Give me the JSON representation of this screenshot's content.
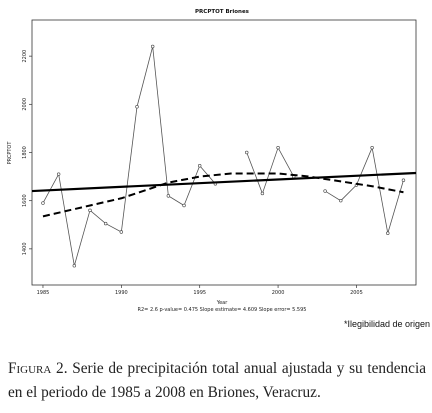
{
  "chart_data": {
    "type": "line",
    "title": "PRCPTOT  Briones",
    "xlabel": "Year",
    "ylabel": "PRCPTOT",
    "xlim": [
      1984.3,
      2008.8
    ],
    "ylim": [
      1250,
      2350
    ],
    "x_ticks": [
      1985,
      1990,
      1995,
      2000,
      2005
    ],
    "y_ticks": [
      1400,
      1600,
      1800,
      2000,
      2200
    ],
    "footnote": "R2= 2.6   p-value= 0.475   Slope estimate= 4.609   Slope error= 5.595",
    "series": [
      {
        "style": "observed",
        "segments": [
          {
            "x": [
              1985,
              1986,
              1987,
              1988,
              1989,
              1990,
              1991,
              1992,
              1993,
              1994,
              1995,
              1996
            ],
            "y": [
              1590,
              1710,
              1330,
              1560,
              1505,
              1470,
              1990,
              2240,
              1620,
              1580,
              1745,
              1670
            ]
          },
          {
            "x": [
              1998,
              1999,
              2000,
              2001
            ],
            "y": [
              1800,
              1630,
              1820,
              1700
            ]
          },
          {
            "x": [
              2003,
              2004,
              2005,
              2006,
              2007,
              2008
            ],
            "y": [
              1640,
              1600,
              1665,
              1820,
              1465,
              1685
            ]
          }
        ]
      },
      {
        "style": "linear-trend",
        "x": [
          1984.3,
          2008.8
        ],
        "y": [
          1640,
          1715
        ]
      },
      {
        "style": "smoothed-trend",
        "x": [
          1985,
          1988,
          1990,
          1993,
          1995,
          1997,
          2000,
          2002,
          2004,
          2006,
          2008
        ],
        "y": [
          1535,
          1580,
          1610,
          1675,
          1700,
          1713,
          1713,
          1700,
          1680,
          1660,
          1635
        ]
      }
    ]
  },
  "note": "*Ilegibilidad de origen",
  "caption": {
    "label": "Figura 2.",
    "text": "Serie de precipitación total anual ajustada y su tendencia en el periodo de 1985 a 2008 en Briones, Veracruz."
  }
}
